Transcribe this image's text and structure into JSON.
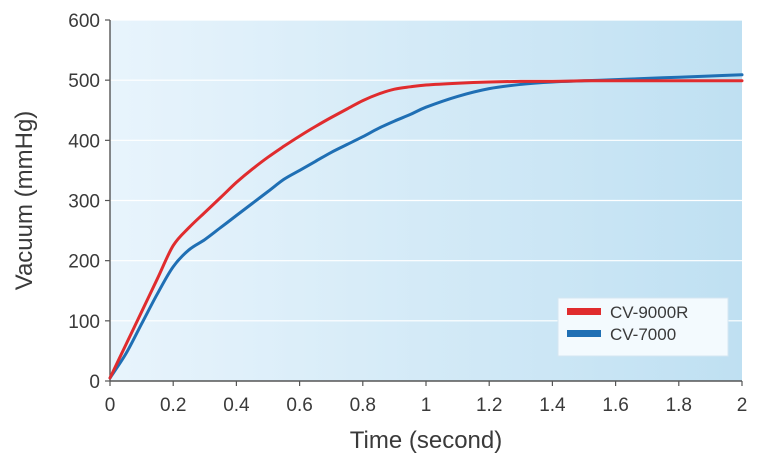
{
  "chart_data": {
    "type": "line",
    "title": "",
    "xlabel": "Time (second)",
    "ylabel": "Vacuum (mmHg)",
    "xlim": [
      0,
      2
    ],
    "ylim": [
      0,
      600
    ],
    "x_ticks": [
      "0",
      "0.2",
      "0.4",
      "0.6",
      "0.8",
      "1",
      "1.2",
      "1.4",
      "1.6",
      "1.8",
      "2"
    ],
    "y_ticks": [
      "0",
      "100",
      "200",
      "300",
      "400",
      "500",
      "600"
    ],
    "grid": "horizontal",
    "legend_position": "bottom-right",
    "background_gradient": [
      "#e8f4fc",
      "#bfe0f2"
    ],
    "series": [
      {
        "name": "CV-9000R",
        "color": "#e02c2e",
        "x": [
          0,
          0.05,
          0.1,
          0.15,
          0.2,
          0.25,
          0.3,
          0.35,
          0.4,
          0.45,
          0.5,
          0.55,
          0.6,
          0.65,
          0.7,
          0.75,
          0.8,
          0.85,
          0.9,
          0.95,
          1.0,
          1.1,
          1.2,
          1.3,
          1.4,
          1.5,
          1.6,
          1.7,
          1.8,
          1.9,
          2.0
        ],
        "y": [
          5,
          60,
          115,
          170,
          225,
          255,
          280,
          305,
          330,
          352,
          372,
          390,
          407,
          423,
          438,
          452,
          466,
          477,
          485,
          489,
          492,
          495,
          497,
          498,
          498,
          499,
          499,
          499,
          499,
          499,
          499
        ]
      },
      {
        "name": "CV-7000",
        "color": "#1f6fb4",
        "x": [
          0,
          0.05,
          0.1,
          0.15,
          0.2,
          0.25,
          0.3,
          0.35,
          0.4,
          0.45,
          0.5,
          0.55,
          0.6,
          0.65,
          0.7,
          0.75,
          0.8,
          0.85,
          0.9,
          0.95,
          1.0,
          1.1,
          1.2,
          1.3,
          1.4,
          1.5,
          1.6,
          1.7,
          1.8,
          1.9,
          2.0
        ],
        "y": [
          5,
          45,
          95,
          145,
          190,
          218,
          235,
          255,
          275,
          295,
          315,
          335,
          350,
          365,
          380,
          393,
          406,
          420,
          432,
          443,
          455,
          473,
          486,
          493,
          497,
          499,
          501,
          503,
          505,
          507,
          509
        ]
      }
    ]
  }
}
